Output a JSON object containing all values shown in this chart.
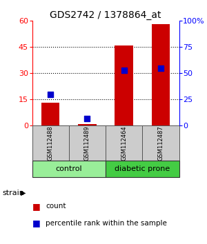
{
  "title": "GDS2742 / 1378864_at",
  "samples": [
    "GSM112488",
    "GSM112489",
    "GSM112464",
    "GSM112487"
  ],
  "counts": [
    13,
    1,
    46,
    58
  ],
  "percentiles": [
    30,
    7,
    53,
    55
  ],
  "ylim_left": [
    0,
    60
  ],
  "ylim_right": [
    0,
    100
  ],
  "yticks_left": [
    0,
    15,
    30,
    45,
    60
  ],
  "yticks_right": [
    0,
    25,
    50,
    75,
    100
  ],
  "ytick_labels_right": [
    "0",
    "25",
    "50",
    "75",
    "100%"
  ],
  "groups": [
    {
      "label": "control",
      "indices": [
        0,
        1
      ],
      "color": "#99ee99"
    },
    {
      "label": "diabetic prone",
      "indices": [
        2,
        3
      ],
      "color": "#44cc44"
    }
  ],
  "bar_color": "#cc0000",
  "dot_color": "#0000cc",
  "bar_width": 0.5,
  "dot_size": 40,
  "sample_box_color": "#cccccc",
  "background_color": "#ffffff",
  "title_fontsize": 10,
  "tick_fontsize": 8,
  "label_fontsize": 8,
  "sample_fontsize": 6,
  "group_fontsize": 8,
  "legend_fontsize": 7.5,
  "strain_label": "strain",
  "legend_count": "count",
  "legend_percentile": "percentile rank within the sample"
}
